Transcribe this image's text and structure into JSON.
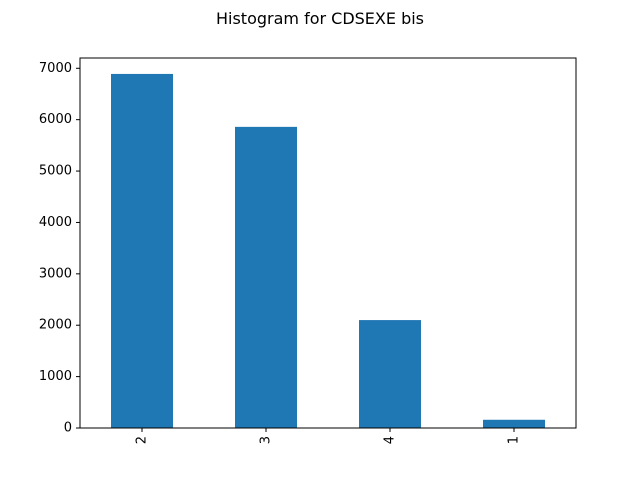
{
  "chart_data": {
    "type": "bar",
    "title": "Histogram for CDSEXE bis",
    "xlabel": "",
    "ylabel": "",
    "categories": [
      "2",
      "3",
      "4",
      "1"
    ],
    "values": [
      6890,
      5860,
      2100,
      160
    ],
    "ylim": [
      0,
      7200
    ],
    "yticks": [
      0,
      1000,
      2000,
      3000,
      4000,
      5000,
      6000,
      7000
    ],
    "bar_color": "#1f77b4",
    "grid": false,
    "legend": "none"
  }
}
